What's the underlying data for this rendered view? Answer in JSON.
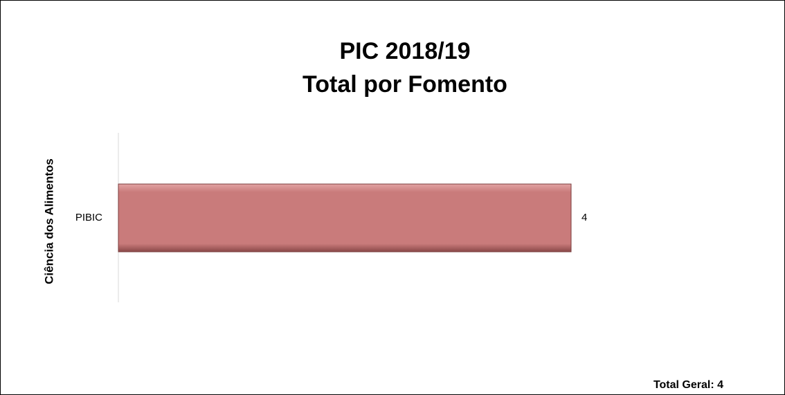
{
  "chart_data": {
    "type": "hbar",
    "title": "PIC 2018/19",
    "subtitle": "Total por Fomento",
    "y_label": "Ciência dos Alimentos",
    "categories": [
      "PIBIC"
    ],
    "values": [
      4
    ],
    "color": "#c97b7b",
    "xlim": [
      0,
      5
    ],
    "annotation": "Total Geral: 4"
  }
}
